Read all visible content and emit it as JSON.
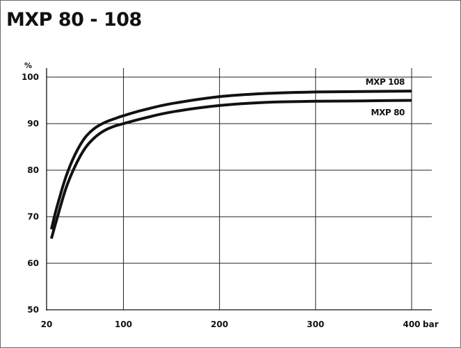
{
  "title": "MXP 80 - 108",
  "chart_data": {
    "type": "line",
    "title": "MXP 80 - 108",
    "xlabel": "",
    "ylabel": "",
    "x_unit": "bar",
    "y_unit": "%",
    "xlim": [
      20,
      400
    ],
    "ylim": [
      50,
      100
    ],
    "x_ticks": [
      "20",
      "100",
      "200",
      "300",
      "400"
    ],
    "y_ticks": [
      "100",
      "90",
      "80",
      "70",
      "60",
      "50"
    ],
    "x_tick_values": [
      20,
      100,
      200,
      300,
      400
    ],
    "y_tick_values": [
      100,
      90,
      80,
      70,
      60,
      50
    ],
    "grid": true,
    "series": [
      {
        "name": "MXP 108",
        "x": [
          25,
          30,
          40,
          50,
          60,
          70,
          80,
          90,
          100,
          120,
          150,
          200,
          250,
          300,
          350,
          400
        ],
        "y": [
          67.3,
          71.5,
          78.5,
          83.5,
          87.0,
          89.0,
          90.2,
          91.0,
          91.7,
          92.9,
          94.3,
          95.8,
          96.5,
          96.8,
          96.9,
          97.0
        ]
      },
      {
        "name": "MXP 80",
        "x": [
          25,
          30,
          40,
          50,
          60,
          70,
          80,
          90,
          100,
          120,
          150,
          200,
          250,
          300,
          350,
          400
        ],
        "y": [
          65.3,
          69.0,
          76.0,
          81.0,
          84.7,
          87.0,
          88.5,
          89.4,
          90.0,
          91.1,
          92.5,
          93.9,
          94.6,
          94.8,
          94.9,
          95.0
        ]
      }
    ]
  }
}
